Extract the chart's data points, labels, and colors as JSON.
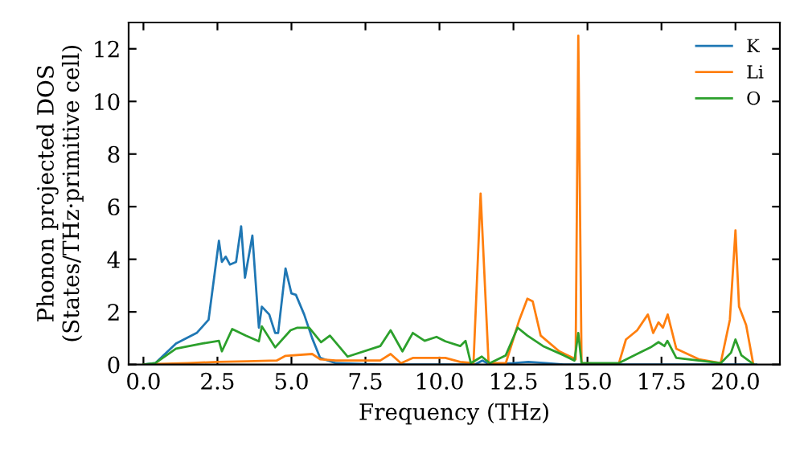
{
  "chart_data": {
    "type": "line",
    "xlabel": "Frequency (THz)",
    "ylabel": "Phonon projected DOS\n(States/THz·primitive cell)",
    "xlim": [
      -0.5,
      21.5
    ],
    "ylim": [
      0,
      13
    ],
    "xticks": [
      {
        "value": 0,
        "label": "0.0"
      },
      {
        "value": 2.5,
        "label": "2.5"
      },
      {
        "value": 5,
        "label": "5.0"
      },
      {
        "value": 7.5,
        "label": "7.5"
      },
      {
        "value": 10,
        "label": "10.0"
      },
      {
        "value": 12.5,
        "label": "12.5"
      },
      {
        "value": 15,
        "label": "15.0"
      },
      {
        "value": 17.5,
        "label": "17.5"
      },
      {
        "value": 20,
        "label": "20.0"
      }
    ],
    "yticks": [
      0,
      2,
      4,
      6,
      8,
      10,
      12
    ],
    "grid": false,
    "legend": "top right",
    "marker": "none",
    "line_style": "solid",
    "series": [
      {
        "name": "K",
        "color": "#1f77b4",
        "x": [
          0,
          0.4,
          1.1,
          1.8,
          2.2,
          2.55,
          2.65,
          2.78,
          2.92,
          3.13,
          3.3,
          3.43,
          3.68,
          3.9,
          4.0,
          4.25,
          4.45,
          4.55,
          4.8,
          5.0,
          5.15,
          5.43,
          5.7,
          5.97,
          6.5,
          8.0,
          11.2,
          11.45,
          11.7,
          12.5,
          13.0,
          13.6,
          14.2,
          20.7
        ],
        "values": [
          0,
          0.05,
          0.8,
          1.2,
          1.7,
          4.7,
          3.9,
          4.1,
          3.8,
          3.9,
          5.25,
          3.3,
          4.9,
          1.4,
          2.2,
          1.9,
          1.2,
          1.2,
          3.65,
          2.7,
          2.65,
          1.9,
          1.0,
          0.25,
          0.05,
          0,
          0,
          0.15,
          0,
          0.05,
          0.1,
          0.05,
          0,
          0
        ]
      },
      {
        "name": "Li",
        "color": "#ff7f0e",
        "x": [
          0,
          0.5,
          1.5,
          2.5,
          3.5,
          4.5,
          4.8,
          5.7,
          5.97,
          6.5,
          8.0,
          8.35,
          8.7,
          9.1,
          10.2,
          10.7,
          11.15,
          11.39,
          11.66,
          12.24,
          12.7,
          12.97,
          13.15,
          13.42,
          14.05,
          14.6,
          14.69,
          14.8,
          16.05,
          16.3,
          16.68,
          17.04,
          17.22,
          17.4,
          17.55,
          17.71,
          18.0,
          18.76,
          19.5,
          19.81,
          20.0,
          20.12,
          20.36,
          20.6
        ],
        "values": [
          0,
          0.02,
          0.05,
          0.1,
          0.12,
          0.15,
          0.33,
          0.4,
          0.2,
          0.15,
          0.15,
          0.4,
          0.05,
          0.25,
          0.25,
          0.1,
          0.05,
          6.5,
          0.05,
          0.05,
          1.7,
          2.5,
          2.4,
          1.1,
          0.5,
          0.2,
          12.5,
          0.05,
          0,
          0.95,
          1.3,
          1.9,
          1.2,
          1.6,
          1.4,
          1.9,
          0.6,
          0.2,
          0.05,
          1.7,
          5.1,
          2.2,
          1.5,
          0.02
        ]
      },
      {
        "name": "O",
        "color": "#2ca02c",
        "x": [
          0,
          0.4,
          1.1,
          2.0,
          2.55,
          2.65,
          3.0,
          3.45,
          3.9,
          4.0,
          4.45,
          4.97,
          5.2,
          5.6,
          6.0,
          6.3,
          6.9,
          8.0,
          8.35,
          8.75,
          9.1,
          9.5,
          9.9,
          10.2,
          10.7,
          10.88,
          11.06,
          11.43,
          11.7,
          12.24,
          12.64,
          12.97,
          13.5,
          14.2,
          14.56,
          14.69,
          14.8,
          16.05,
          16.77,
          17.13,
          17.4,
          17.6,
          17.7,
          18.0,
          19.5,
          19.85,
          20.0,
          20.2,
          20.6
        ],
        "values": [
          0,
          0.05,
          0.6,
          0.8,
          0.9,
          0.5,
          1.35,
          1.1,
          0.88,
          1.45,
          0.65,
          1.3,
          1.4,
          1.4,
          0.85,
          1.1,
          0.3,
          0.7,
          1.3,
          0.5,
          1.2,
          0.9,
          1.05,
          0.88,
          0.7,
          0.9,
          0.05,
          0.3,
          0.05,
          0.35,
          1.4,
          1.1,
          0.7,
          0.35,
          0.15,
          1.2,
          0.05,
          0.05,
          0.45,
          0.65,
          0.85,
          0.7,
          0.9,
          0.25,
          0.05,
          0.45,
          0.95,
          0.35,
          0.02
        ]
      }
    ]
  }
}
